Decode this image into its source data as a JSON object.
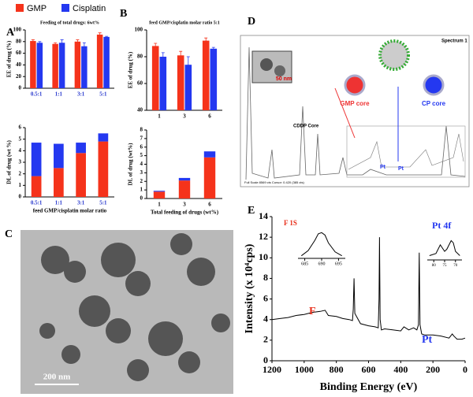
{
  "panel_labels": [
    "A",
    "B",
    "C",
    "D",
    "E"
  ],
  "chart_data": [
    {
      "type": "bar",
      "title": "Feeding of total drugs: 6wt%",
      "y_label": "EE of drug (%)",
      "categories": [
        "0.5:1",
        "1:1",
        "3:1",
        "5:1"
      ],
      "tick_label_color": "#2233cc",
      "series": [
        {
          "name": "GMP",
          "color": "#f5331b",
          "values": [
            81,
            76,
            80,
            92
          ],
          "errors": [
            2,
            2,
            3,
            3
          ]
        },
        {
          "name": "Cisplatin",
          "color": "#2438f0",
          "values": [
            78,
            78,
            72,
            88
          ],
          "errors": [
            2,
            5,
            6,
            1
          ]
        }
      ],
      "ylim": [
        0,
        100
      ],
      "yticks": [
        0,
        20,
        40,
        60,
        80,
        100
      ]
    },
    {
      "type": "stacked-bar",
      "y_label": "DL of drug (wt %)",
      "x_label": "feed GMP/cisplatin molar ratio",
      "categories": [
        "0.5:1",
        "1:1",
        "3:1",
        "5:1"
      ],
      "tick_label_color": "#2233cc",
      "series": [
        {
          "name": "GMP",
          "color": "#f5331b",
          "values": [
            1.8,
            2.5,
            3.8,
            4.8
          ]
        },
        {
          "name": "Cisplatin",
          "color": "#2438f0",
          "values": [
            2.9,
            2.1,
            0.9,
            0.7
          ]
        }
      ],
      "ylim": [
        0,
        6
      ],
      "yticks": [
        0,
        1,
        2,
        3,
        4,
        5,
        6
      ]
    },
    {
      "type": "bar",
      "title": "feed GMP/cisplatin molar ratio 5:1",
      "y_label": "EE of drug (%)",
      "categories": [
        "1",
        "3",
        "6"
      ],
      "tick_label_color": "#000000",
      "series": [
        {
          "name": "GMP",
          "color": "#f5331b",
          "values": [
            88,
            81,
            92
          ],
          "errors": [
            2,
            3,
            2
          ]
        },
        {
          "name": "Cisplatin",
          "color": "#2438f0",
          "values": [
            80,
            74,
            86
          ],
          "errors": [
            3,
            6,
            1
          ]
        }
      ],
      "ylim": [
        40,
        100
      ],
      "yticks": [
        40,
        60,
        80,
        100
      ]
    },
    {
      "type": "stacked-bar",
      "y_label": "DL of drug (wt%)",
      "x_label": "Total feeding of drugs (wt%)",
      "categories": [
        "1",
        "3",
        "6"
      ],
      "tick_label_color": "#000000",
      "series": [
        {
          "name": "GMP",
          "color": "#f5331b",
          "values": [
            0.8,
            2.1,
            4.8
          ]
        },
        {
          "name": "Cisplatin",
          "color": "#2438f0",
          "values": [
            0.1,
            0.3,
            0.7
          ]
        }
      ],
      "ylim": [
        0,
        8
      ],
      "yticks": [
        0,
        1,
        2,
        3,
        4,
        5,
        6,
        7,
        8
      ]
    },
    {
      "type": "line",
      "y_label": "Intensity (x 10⁴cps)",
      "x_label": "Binding Energy (eV)",
      "x": [
        1200,
        1150,
        1100,
        1050,
        1000,
        950,
        900,
        870,
        850,
        800,
        760,
        720,
        700,
        695,
        690,
        685,
        650,
        600,
        560,
        540,
        535,
        532,
        528,
        520,
        500,
        450,
        400,
        380,
        350,
        320,
        300,
        290,
        285,
        280,
        270,
        250,
        200,
        150,
        100,
        80,
        75,
        70,
        50,
        20,
        0
      ],
      "series": [
        {
          "color": "#000000",
          "values": [
            4.0,
            4.1,
            4.2,
            4.4,
            4.5,
            4.7,
            4.8,
            4.9,
            4.4,
            4.3,
            4.1,
            4.0,
            3.9,
            5.0,
            8.0,
            4.6,
            3.6,
            3.4,
            3.3,
            3.2,
            6.0,
            12.0,
            4.0,
            3.0,
            3.1,
            3.0,
            2.9,
            3.3,
            3.0,
            3.2,
            3.0,
            3.5,
            10.5,
            3.5,
            2.6,
            2.5,
            2.5,
            2.4,
            2.2,
            2.6,
            2.5,
            2.4,
            2.1,
            2.1,
            2.2
          ]
        }
      ],
      "xlim": [
        1200,
        0
      ],
      "xticks": [
        1200,
        1000,
        800,
        600,
        400,
        200,
        0
      ],
      "ylim": [
        0,
        14
      ],
      "yticks": [
        0,
        2,
        4,
        6,
        8,
        10,
        12,
        14
      ],
      "annotations": [
        {
          "text": "F 1S",
          "color": "#e8301c"
        },
        {
          "text": "Pt 4f",
          "color": "#2438f0"
        },
        {
          "text": "F",
          "color": "#e8301c"
        },
        {
          "text": "Pt",
          "color": "#2438f0"
        }
      ]
    },
    {
      "type": "line",
      "x": [
        684,
        686,
        688,
        689,
        690,
        691,
        692,
        694,
        696
      ],
      "series": [
        {
          "color": "#000000",
          "values": [
            0.1,
            0.3,
            0.7,
            0.95,
            1.0,
            0.9,
            0.6,
            0.25,
            0.1
          ]
        }
      ],
      "xlim": [
        683,
        697
      ],
      "xticks": [
        685,
        690,
        695
      ],
      "ylim": [
        0,
        1.1
      ]
    },
    {
      "type": "line",
      "x": [
        82,
        79,
        77,
        75,
        74,
        72,
        71,
        70,
        68
      ],
      "series": [
        {
          "color": "#000000",
          "values": [
            0.2,
            0.3,
            0.7,
            0.4,
            0.5,
            0.9,
            0.8,
            0.4,
            0.2
          ]
        }
      ],
      "xlim": [
        83,
        67
      ],
      "xticks": [
        80,
        75,
        70
      ],
      "ylim": [
        0,
        1.1
      ]
    }
  ],
  "images": {
    "C": {
      "scale_bar": "200 nm"
    },
    "D": {
      "spectrum_name": "Spectrum 1",
      "scale_bar": "50 nm",
      "core_label": "CDDP Core",
      "gmp_core": "GMP core",
      "cp_core": "CP core",
      "pt_label_1": "Pt",
      "pt_label_2": "Pt",
      "footer": "Full Scale 8569 cts Cursor: 0.420 (385 cts)"
    }
  }
}
